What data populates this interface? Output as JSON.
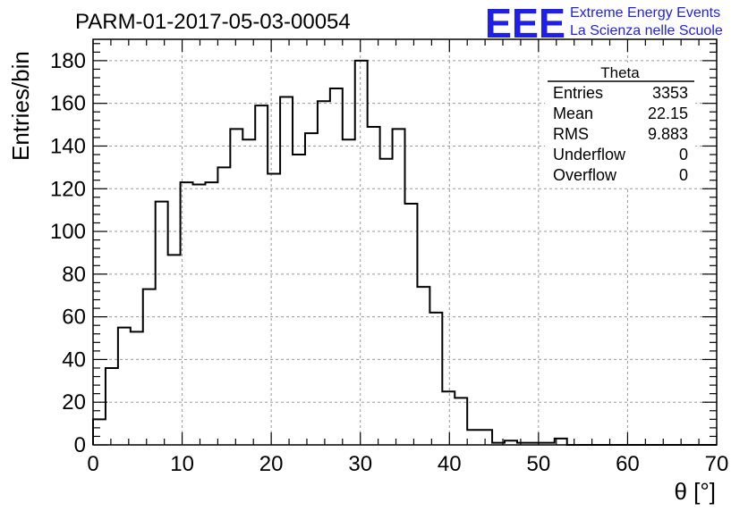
{
  "header": {
    "run_title": "PARM-01-2017-05-03-00054",
    "logo_text": "EEE",
    "logo_line1": "Extreme Energy Events",
    "logo_line2": "La Scienza nelle Scuole",
    "logo_color": "#1f1fe6"
  },
  "stats": {
    "title": "Theta",
    "rows": [
      {
        "label": "Entries",
        "value": "3353"
      },
      {
        "label": "Mean",
        "value": "22.15"
      },
      {
        "label": "RMS",
        "value": "9.883"
      },
      {
        "label": "Underflow",
        "value": "0"
      },
      {
        "label": "Overflow",
        "value": "0"
      }
    ]
  },
  "chart_data": {
    "type": "histogram",
    "title": "PARM-01-2017-05-03-00054",
    "xlabel": "θ [°]",
    "ylabel": "Entries/bin",
    "xlim": [
      0,
      70
    ],
    "ylim": [
      0,
      190
    ],
    "grid": true,
    "legend": "none",
    "bin_width": 1.4,
    "x_ticks": [
      0,
      10,
      20,
      30,
      40,
      50,
      60,
      70
    ],
    "y_ticks": [
      0,
      20,
      40,
      60,
      80,
      100,
      120,
      140,
      160,
      180
    ],
    "bin_edges_start": 0,
    "values": [
      12,
      36,
      55,
      53,
      73,
      114,
      89,
      123,
      122,
      123,
      130,
      148,
      143,
      159,
      127,
      163,
      136,
      146,
      161,
      167,
      143,
      180,
      149,
      134,
      148,
      113,
      74,
      62,
      25,
      22,
      7,
      7,
      1,
      2,
      1,
      1,
      1,
      3,
      0,
      0,
      0,
      0,
      0,
      0,
      0,
      0,
      0,
      0,
      0,
      0
    ]
  }
}
